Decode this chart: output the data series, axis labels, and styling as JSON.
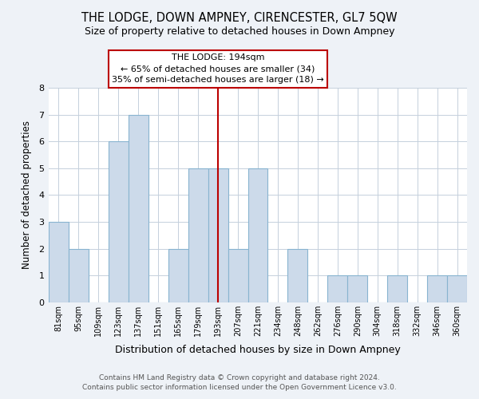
{
  "title": "THE LODGE, DOWN AMPNEY, CIRENCESTER, GL7 5QW",
  "subtitle": "Size of property relative to detached houses in Down Ampney",
  "xlabel": "Distribution of detached houses by size in Down Ampney",
  "ylabel": "Number of detached properties",
  "bin_labels": [
    "81sqm",
    "95sqm",
    "109sqm",
    "123sqm",
    "137sqm",
    "151sqm",
    "165sqm",
    "179sqm",
    "193sqm",
    "207sqm",
    "221sqm",
    "234sqm",
    "248sqm",
    "262sqm",
    "276sqm",
    "290sqm",
    "304sqm",
    "318sqm",
    "332sqm",
    "346sqm",
    "360sqm"
  ],
  "bar_heights": [
    3,
    2,
    0,
    6,
    7,
    0,
    2,
    5,
    5,
    2,
    5,
    0,
    2,
    0,
    1,
    1,
    0,
    1,
    0,
    1,
    1
  ],
  "bar_color": "#ccdaea",
  "bar_edge_color": "#88b4d0",
  "ylim": [
    0,
    8
  ],
  "yticks": [
    0,
    1,
    2,
    3,
    4,
    5,
    6,
    7,
    8
  ],
  "marker_idx": 8,
  "marker_label": "THE LODGE: 194sqm",
  "marker_color": "#bb0000",
  "annotation_line1": "← 65% of detached houses are smaller (34)",
  "annotation_line2": "35% of semi-detached houses are larger (18) →",
  "footer_line1": "Contains HM Land Registry data © Crown copyright and database right 2024.",
  "footer_line2": "Contains public sector information licensed under the Open Government Licence v3.0.",
  "background_color": "#eef2f7",
  "plot_background_color": "#ffffff",
  "grid_color": "#c5d0dc"
}
